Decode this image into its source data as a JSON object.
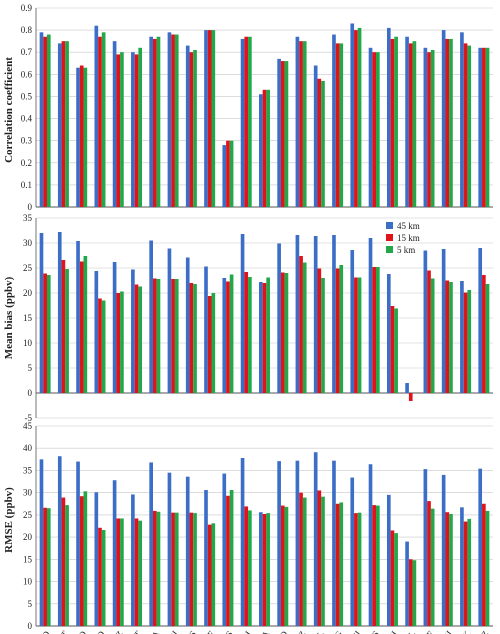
{
  "chart_data": [
    {
      "type": "bar",
      "id": "corr",
      "ylabel": "Correlation coefficient",
      "ylim": [
        0,
        0.9
      ],
      "yticks": [
        "0",
        "0.1",
        "0.2",
        "0.3",
        "0.4",
        "0.5",
        "0.6",
        "0.7",
        "0.8",
        "0.9"
      ],
      "categories": [
        "BD",
        "BJT",
        "CD",
        "CFD",
        "CZ",
        "DT",
        "GA",
        "HJ",
        "HS",
        "LF",
        "LS",
        "LTH",
        "QA",
        "QHD",
        "SJZ",
        "SQL",
        "TG",
        "TJ",
        "TS",
        "XH",
        "XL",
        "YF",
        "YJ",
        "ZJK",
        "ZZ"
      ],
      "series": [
        {
          "name": "45 km",
          "values": [
            0.79,
            0.74,
            0.63,
            0.82,
            0.75,
            0.7,
            0.77,
            0.79,
            0.73,
            0.8,
            0.28,
            0.76,
            0.51,
            0.67,
            0.77,
            0.64,
            0.78,
            0.83,
            0.72,
            0.81,
            0.77,
            0.72,
            0.8,
            0.79,
            0.72
          ]
        },
        {
          "name": "15 km",
          "values": [
            0.77,
            0.75,
            0.64,
            0.77,
            0.69,
            0.69,
            0.76,
            0.78,
            0.7,
            0.8,
            0.3,
            0.77,
            0.53,
            0.66,
            0.75,
            0.58,
            0.74,
            0.8,
            0.7,
            0.76,
            0.74,
            0.7,
            0.76,
            0.74,
            0.72
          ]
        },
        {
          "name": "5 km",
          "values": [
            0.78,
            0.75,
            0.63,
            0.79,
            0.7,
            0.72,
            0.77,
            0.78,
            0.71,
            0.8,
            0.3,
            0.77,
            0.53,
            0.66,
            0.75,
            0.57,
            0.74,
            0.81,
            0.7,
            0.77,
            0.75,
            0.71,
            0.76,
            0.73,
            0.72
          ]
        }
      ]
    },
    {
      "type": "bar",
      "id": "bias",
      "ylabel": "Mean bias (ppbv)",
      "ylim": [
        -5,
        35
      ],
      "yticks": [
        "-5",
        "0",
        "5",
        "10",
        "15",
        "20",
        "25",
        "30",
        "35"
      ],
      "categories": [
        "BD",
        "BJT",
        "CD",
        "CFD",
        "CZ",
        "DT",
        "GA",
        "HJ",
        "HS",
        "LF",
        "LS",
        "LTH",
        "QA",
        "QHD",
        "SJZ",
        "SQL",
        "TG",
        "TJ",
        "TS",
        "XH",
        "XL",
        "YF",
        "YJ",
        "ZJK",
        "ZZ"
      ],
      "legend": [
        "45 km",
        "15 km",
        "5 km"
      ],
      "legend_position": "top-right",
      "series": [
        {
          "name": "45 km",
          "values": [
            32.0,
            32.2,
            30.4,
            24.4,
            26.2,
            24.7,
            30.5,
            28.9,
            27.1,
            25.3,
            23.0,
            31.8,
            22.2,
            29.9,
            31.6,
            31.4,
            31.6,
            28.6,
            31.0,
            23.8,
            2.0,
            28.5,
            28.8,
            22.4,
            29.0
          ]
        },
        {
          "name": "15 km",
          "values": [
            23.9,
            26.6,
            26.3,
            18.9,
            20.0,
            21.7,
            22.9,
            22.8,
            22.0,
            19.4,
            22.3,
            24.2,
            22.0,
            24.1,
            27.4,
            24.9,
            24.9,
            23.1,
            25.2,
            17.4,
            -1.6,
            24.5,
            22.5,
            20.1,
            23.6
          ]
        },
        {
          "name": "5 km",
          "values": [
            23.6,
            24.8,
            27.4,
            18.5,
            20.3,
            21.3,
            22.8,
            22.8,
            21.8,
            20.0,
            23.7,
            23.2,
            23.1,
            24.0,
            26.1,
            23.0,
            25.6,
            23.1,
            25.2,
            16.9,
            0.0,
            22.9,
            22.2,
            20.6,
            21.8
          ]
        }
      ]
    },
    {
      "type": "bar",
      "id": "rmse",
      "ylabel": "RMSE (ppbv)",
      "ylim": [
        0,
        45
      ],
      "yticks": [
        "0",
        "5",
        "10",
        "15",
        "20",
        "25",
        "30",
        "35",
        "40",
        "45"
      ],
      "categories": [
        "BD",
        "BJT",
        "CD",
        "CFD",
        "CZ",
        "DT",
        "GA",
        "HJ",
        "HS",
        "LF",
        "LS",
        "LTH",
        "QA",
        "QHD",
        "SJZ",
        "SQL",
        "TG",
        "TJ",
        "TS",
        "XH",
        "XL",
        "YF",
        "YJ",
        "ZJK",
        "ZZ"
      ],
      "series": [
        {
          "name": "45 km",
          "values": [
            37.5,
            38.2,
            37.0,
            30.1,
            32.8,
            29.6,
            36.8,
            34.5,
            33.6,
            30.6,
            34.3,
            37.8,
            25.6,
            37.1,
            37.2,
            39.1,
            37.2,
            33.4,
            36.4,
            29.5,
            19.0,
            35.3,
            34.0,
            26.7,
            35.4
          ]
        },
        {
          "name": "15 km",
          "values": [
            26.6,
            28.9,
            29.2,
            22.1,
            24.2,
            24.2,
            25.9,
            25.5,
            25.5,
            22.8,
            29.3,
            26.9,
            25.2,
            27.1,
            30.0,
            30.5,
            27.5,
            25.4,
            27.2,
            21.5,
            15.0,
            28.1,
            25.6,
            23.5,
            27.5
          ]
        },
        {
          "name": "5 km",
          "values": [
            26.5,
            27.2,
            30.3,
            21.6,
            24.2,
            23.7,
            25.7,
            25.5,
            25.4,
            23.1,
            30.6,
            26.0,
            25.4,
            26.8,
            28.9,
            29.1,
            27.8,
            25.5,
            27.1,
            20.9,
            14.8,
            26.4,
            25.2,
            24.1,
            25.9
          ]
        }
      ]
    }
  ],
  "colors": {
    "s0": "#3c6ec8",
    "s1": "#e0131a",
    "s2": "#22a848",
    "grid": "#c8c8c8",
    "axis": "#555555"
  }
}
